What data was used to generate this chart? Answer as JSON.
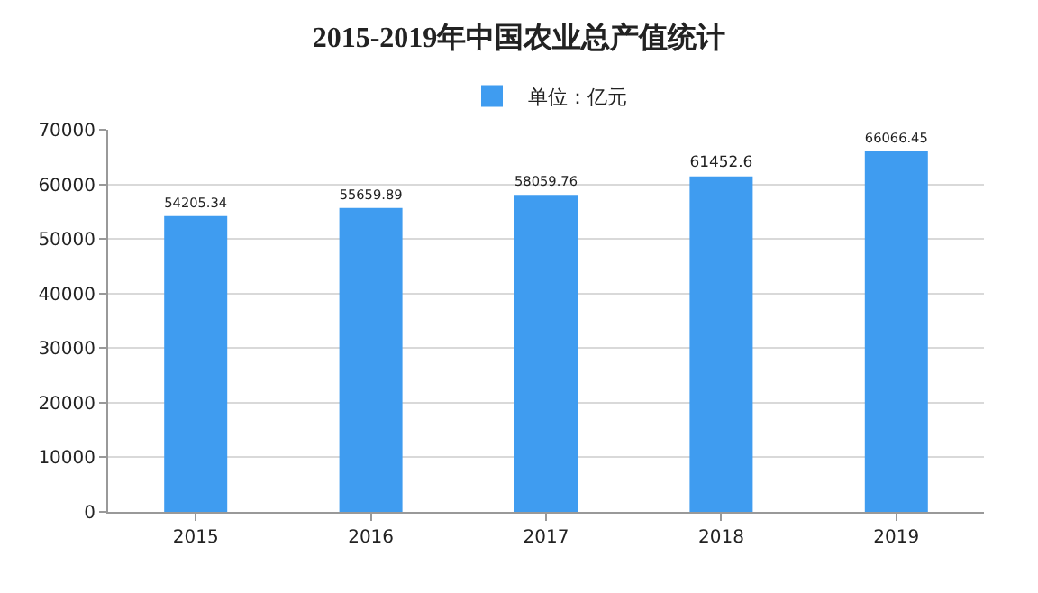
{
  "chart_data": {
    "type": "bar",
    "title": "2015-2019年中国农业总产值统计",
    "categories": [
      "2015",
      "2016",
      "2017",
      "2018",
      "2019"
    ],
    "series": [
      {
        "name": "单位：亿元",
        "color": "#3f9cf0",
        "values": [
          54205.34,
          55659.89,
          58059.76,
          61452.6,
          66066.45
        ]
      }
    ],
    "ylim": [
      0,
      70000
    ],
    "yticks": [
      0,
      10000,
      20000,
      30000,
      40000,
      50000,
      60000,
      70000
    ],
    "grid": "y",
    "legend": "top",
    "data_labels": true
  }
}
